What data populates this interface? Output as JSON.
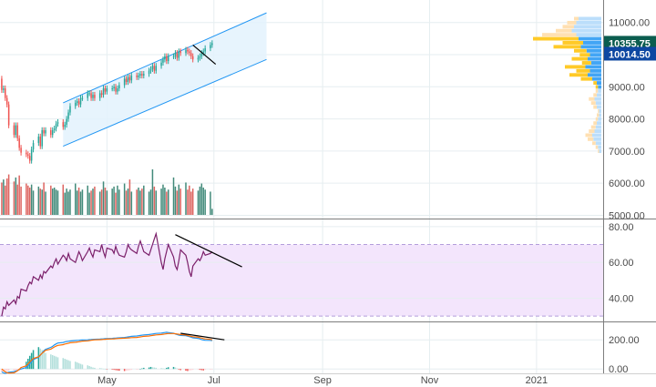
{
  "colors": {
    "up": "#26a69a",
    "down": "#ef5350",
    "volume_up": "#2e7d6b",
    "volume_down": "#d9534f",
    "channel_fill": "#e3f2fd",
    "channel_line": "#2196f3",
    "rsi_band": "#f3e5fc",
    "rsi_line": "#7b1f6a",
    "macd_line": "#2196f3",
    "signal_line": "#ff6d00",
    "hist_up": "#26a69a",
    "hist_up_light": "#b2dfdb",
    "hist_down": "#ef5350",
    "hist_down_light": "#ffcdd2",
    "trendline": "#000000",
    "profile_value_area": "#42a5f5",
    "profile_outer": "#bbdefb",
    "profile_value_area_down": "#ffca28",
    "profile_outer_down": "#ffe0b2",
    "badge_green": "#0b5d4f",
    "badge_blue": "#0d47a1",
    "grid": "#e6eef0"
  },
  "badges": {
    "last_price": "10355.75",
    "poc_price": "10014.50"
  },
  "chart_data": [
    {
      "type": "candlestick",
      "pane": "price",
      "title": "",
      "ylim": [
        4900,
        11700
      ],
      "y_ticks": [
        "11000.00",
        "10000.00",
        "9000.00",
        "8000.00",
        "7000.00",
        "6000.00",
        "5000.00"
      ],
      "y_tick_values": [
        11000,
        10000,
        9000,
        8000,
        7000,
        6000,
        5000
      ],
      "x_ticks": [
        "May",
        "Jul",
        "Sep",
        "Nov",
        "2021"
      ],
      "x_tick_dates": [
        "2020-05-01",
        "2020-07-01",
        "2020-09-01",
        "2020-11-01",
        "2021-01-01"
      ],
      "xlim": [
        "2020-03-01",
        "2021-02-08"
      ],
      "grid": true,
      "series": [
        {
          "kind": "ohlc",
          "start_date": "2020-03-02",
          "trading_days_only": true,
          "open": [
            9250,
            8900,
            8950,
            8650,
            8450,
            7800,
            7500,
            7800,
            7400,
            7100,
            6950,
            6900,
            6850,
            6700,
            7050,
            7250,
            7450,
            7150,
            7650,
            7550,
            7650,
            7500,
            7650,
            7700,
            7850,
            7900,
            7750,
            7820,
            8000,
            8200,
            8400,
            8500,
            8550,
            8450,
            8650,
            8650,
            8800,
            8800,
            8650,
            8750,
            8650,
            8800,
            8750,
            8950,
            8850,
            8950,
            8950,
            9000,
            8850,
            8950,
            9050,
            9250,
            9150,
            9300,
            9200,
            9350,
            9300,
            9350,
            9400,
            9350,
            9400,
            9500,
            9550,
            9650,
            9500,
            9650,
            9750,
            9850,
            9950,
            9800,
            9950,
            9950,
            10050,
            9900,
            10100,
            10050,
            10150,
            10100,
            10050,
            9950,
            9850,
            9900,
            9950,
            10050,
            10100,
            10200,
            10300
          ],
          "close": [
            8900,
            8950,
            8650,
            8450,
            7800,
            7500,
            7800,
            7400,
            7100,
            6950,
            6900,
            6850,
            6700,
            7050,
            7250,
            7450,
            7150,
            7650,
            7550,
            7650,
            7500,
            7650,
            7700,
            7850,
            7900,
            7750,
            7820,
            8000,
            8200,
            8400,
            8500,
            8550,
            8450,
            8650,
            8650,
            8800,
            8800,
            8650,
            8750,
            8650,
            8800,
            8750,
            8950,
            8850,
            8950,
            8950,
            9000,
            8850,
            8950,
            9050,
            9250,
            9150,
            9300,
            9200,
            9350,
            9300,
            9350,
            9400,
            9350,
            9400,
            9500,
            9550,
            9650,
            9500,
            9650,
            9750,
            9850,
            9950,
            9800,
            9950,
            9950,
            10050,
            9900,
            10100,
            10050,
            10150,
            10100,
            10050,
            9950,
            9850,
            9900,
            9950,
            10050,
            10100,
            10200,
            10300,
            10356
          ]
        },
        {
          "kind": "volume",
          "values": [
            64,
            70,
            58,
            72,
            80,
            66,
            74,
            60,
            78,
            56,
            62,
            58,
            54,
            60,
            48,
            56,
            52,
            50,
            64,
            46,
            58,
            52,
            54,
            50,
            48,
            60,
            44,
            52,
            46,
            50,
            62,
            48,
            54,
            46,
            50,
            58,
            44,
            48,
            52,
            56,
            46,
            50,
            66,
            54,
            48,
            52,
            56,
            44,
            58,
            50,
            62,
            48,
            52,
            70,
            46,
            50,
            54,
            48,
            52,
            58,
            46,
            50,
            90,
            56,
            48,
            52,
            60,
            54,
            46,
            50,
            74,
            56,
            48,
            60,
            52,
            64,
            50,
            58,
            46,
            52,
            48,
            56,
            62,
            54,
            50,
            46,
            12
          ]
        },
        {
          "kind": "channel",
          "lower_start": {
            "date": "2020-04-06",
            "value": 7150
          },
          "lower_end": {
            "date": "2020-07-31",
            "value": 9850
          },
          "upper_start": {
            "date": "2020-04-06",
            "value": 8500
          },
          "upper_end": {
            "date": "2020-07-31",
            "value": 11300
          }
        },
        {
          "kind": "trendline",
          "start": {
            "date": "2020-06-19",
            "value": 10300
          },
          "end": {
            "date": "2020-07-02",
            "value": 9700
          }
        },
        {
          "kind": "volume_profile",
          "price_step": 125,
          "price_start": 6925,
          "up": [
            2,
            3,
            5,
            7,
            8,
            6,
            5,
            4,
            3,
            2,
            2,
            4,
            5,
            6,
            4,
            3,
            3,
            4,
            8,
            12,
            10,
            14,
            9,
            12,
            10,
            13,
            18,
            16,
            20,
            22,
            26,
            24,
            22,
            20
          ],
          "down": [
            1,
            2,
            3,
            5,
            6,
            5,
            4,
            3,
            2,
            2,
            1,
            3,
            4,
            5,
            3,
            2,
            2,
            3,
            10,
            16,
            12,
            18,
            8,
            14,
            9,
            11,
            24,
            18,
            40,
            30,
            14,
            10,
            8,
            4
          ]
        }
      ]
    },
    {
      "type": "line",
      "pane": "rsi",
      "ylim": [
        27,
        84
      ],
      "y_ticks": [
        "80.00",
        "60.00",
        "40.00"
      ],
      "y_tick_values": [
        80,
        60,
        40
      ],
      "band": [
        30,
        70
      ],
      "series": [
        {
          "kind": "rsi",
          "values": [
            30,
            35,
            34,
            38,
            36,
            39,
            37,
            41,
            40,
            45,
            44,
            47,
            49,
            48,
            52,
            50,
            53,
            51,
            55,
            54,
            58,
            57,
            60,
            62,
            59,
            64,
            63,
            61,
            65,
            62,
            60,
            63,
            66,
            64,
            61,
            66,
            68,
            65,
            63,
            67,
            66,
            70,
            66,
            63,
            68,
            67,
            65,
            69,
            66,
            64,
            63,
            66,
            70,
            68,
            67,
            65,
            69,
            72,
            69,
            66,
            64,
            67,
            70,
            73,
            76,
            60,
            56,
            62,
            66,
            70,
            63,
            58,
            56,
            61,
            67,
            64,
            60,
            55,
            52,
            58,
            62,
            61,
            63,
            66,
            64,
            65,
            66
          ]
        },
        {
          "kind": "trendline",
          "start": {
            "date": "2020-06-09",
            "value": 75.5
          },
          "end": {
            "date": "2020-07-17",
            "value": 57.5
          }
        }
      ]
    },
    {
      "type": "line",
      "pane": "macd",
      "ylim": [
        -30,
        320
      ],
      "y_ticks": [
        "200.00",
        "0.00"
      ],
      "y_tick_values": [
        200,
        0
      ],
      "series": [
        {
          "kind": "macd",
          "values": [
            -20,
            -26,
            -30,
            -26,
            -22,
            -18,
            -14,
            -10,
            -5,
            0,
            10,
            20,
            35,
            50,
            65,
            80,
            95,
            110,
            125,
            135,
            148,
            155,
            165,
            172,
            178,
            182,
            186,
            188,
            190,
            192,
            195,
            196,
            197,
            198,
            199,
            200,
            201,
            202,
            203,
            204,
            205,
            206,
            207,
            208,
            209,
            210,
            211,
            212,
            213,
            214,
            216,
            218,
            220,
            222,
            224,
            226,
            228,
            230,
            232,
            234,
            236,
            238,
            240,
            242,
            244,
            246,
            248,
            250,
            252,
            250,
            245,
            240,
            236,
            232,
            230,
            228,
            225,
            222,
            218,
            214,
            210,
            206,
            202,
            199,
            197,
            196,
            195
          ]
        },
        {
          "kind": "signal",
          "values": [
            0,
            -10,
            -20,
            -25,
            -28,
            -26,
            -20,
            -12,
            -2,
            10,
            22,
            35,
            48,
            60,
            72,
            84,
            96,
            108,
            118,
            128,
            136,
            144,
            151,
            157,
            162,
            167,
            171,
            174,
            177,
            180,
            183,
            185,
            187,
            189,
            191,
            193,
            195,
            197,
            199,
            200,
            201,
            202,
            203,
            204,
            205,
            206,
            207,
            208,
            209,
            210,
            211,
            212,
            213,
            214,
            215,
            216,
            218,
            220,
            222,
            224,
            226,
            228,
            230,
            232,
            234,
            236,
            238,
            240,
            242,
            243,
            243,
            242,
            240,
            238,
            236,
            233,
            230,
            227,
            224,
            221,
            218,
            215,
            212,
            209,
            206,
            203,
            200
          ]
        },
        {
          "kind": "histogram",
          "values": [
            -20,
            -18,
            -16,
            -14,
            -12,
            -10,
            -8,
            -6,
            -4,
            -2,
            50,
            70,
            90,
            110,
            130,
            150,
            140,
            130,
            120,
            110,
            100,
            95,
            90,
            85,
            80,
            75,
            70,
            65,
            60,
            55,
            50,
            45,
            40,
            35,
            30,
            25,
            20,
            15,
            10,
            8,
            6,
            4,
            2,
            0,
            -2,
            -4,
            -6,
            -8,
            -10,
            -12,
            -14,
            -12,
            -10,
            -8,
            -6,
            -4,
            -2,
            0,
            4,
            8,
            10,
            14,
            12,
            10,
            8,
            6,
            4,
            2,
            8,
            12,
            14,
            10,
            4,
            -4,
            -8,
            -12,
            -14,
            -10,
            -8,
            -6,
            -4,
            -6,
            -8,
            -10,
            -6,
            -4,
            -2
          ]
        },
        {
          "kind": "trendline",
          "start": {
            "date": "2020-06-12",
            "value": 245
          },
          "end": {
            "date": "2020-07-07",
            "value": 200
          }
        }
      ]
    }
  ]
}
